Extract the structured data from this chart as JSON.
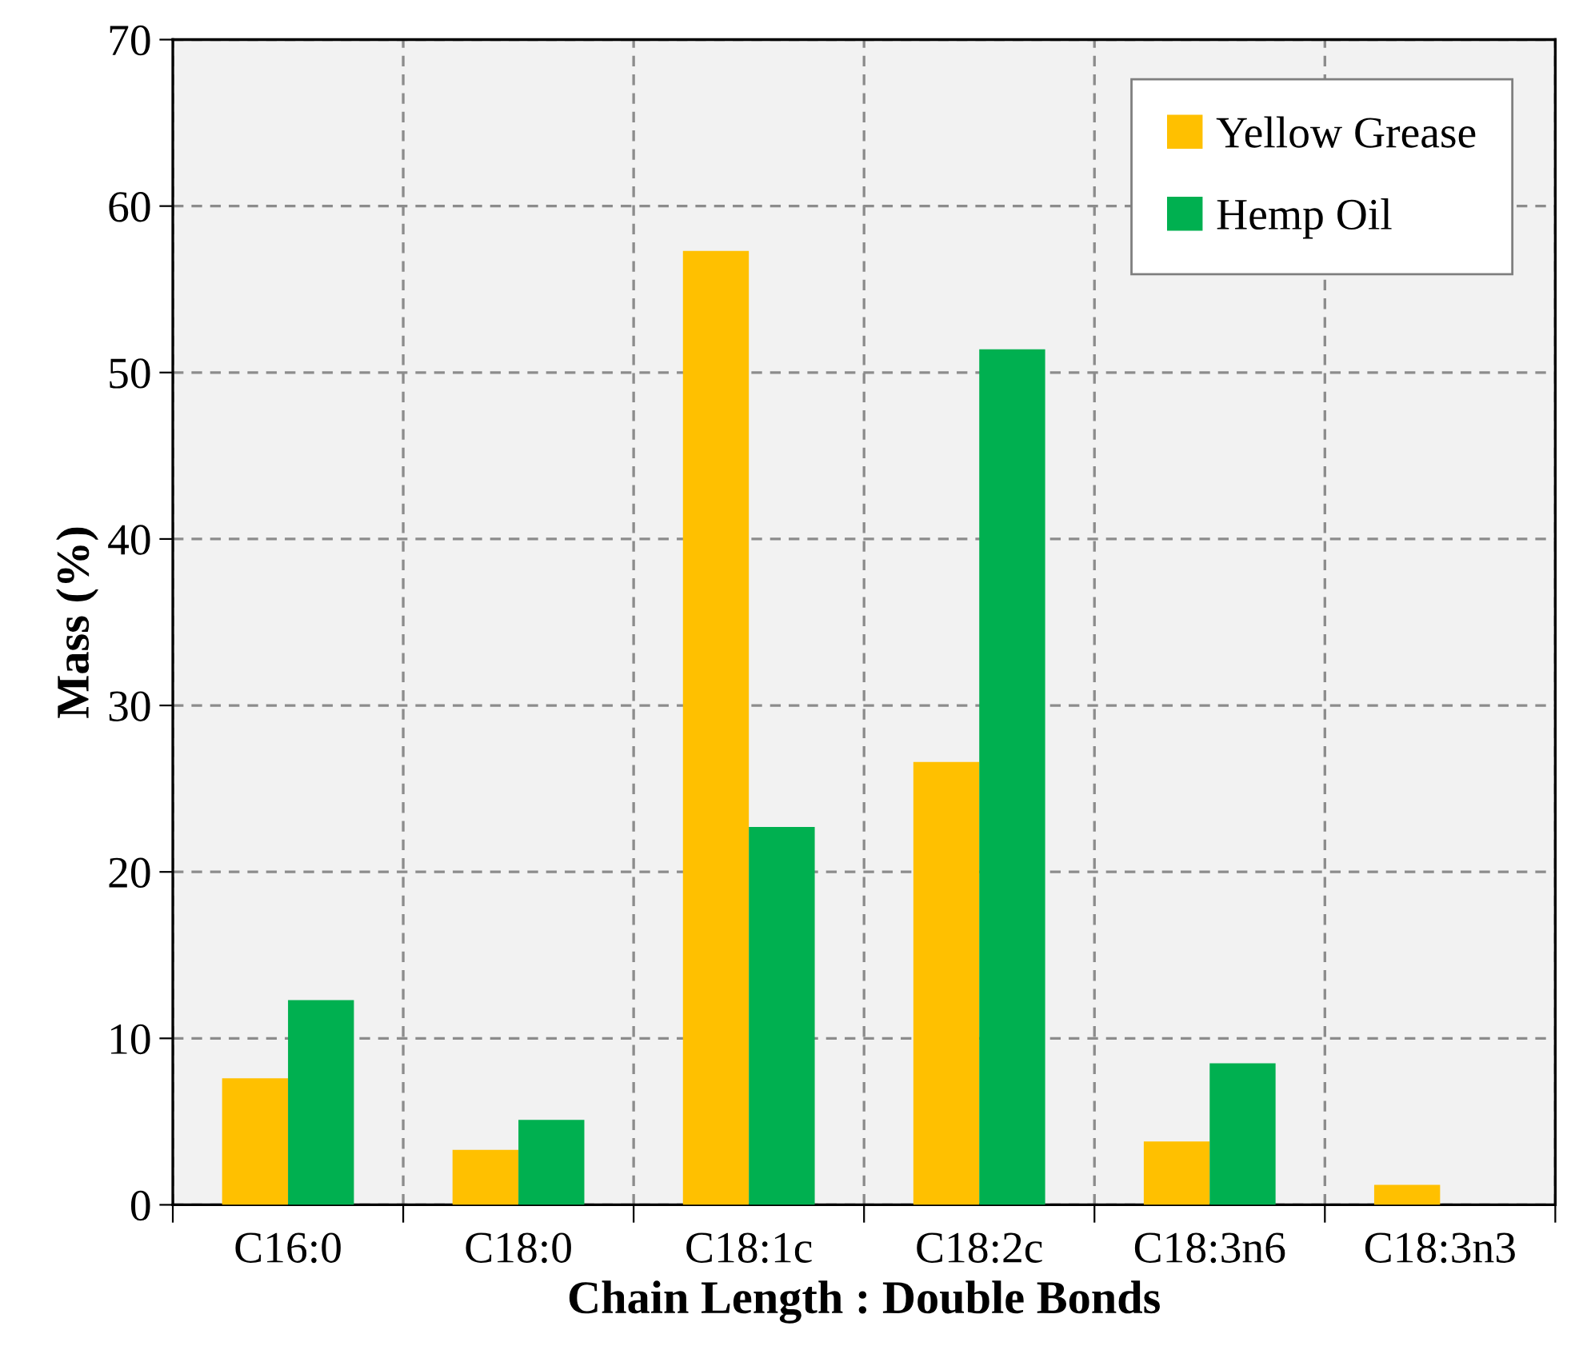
{
  "chart_data": {
    "type": "bar",
    "xlabel": "Chain Length : Double Bonds",
    "ylabel": "Mass (%)",
    "categories": [
      "C16:0",
      "C18:0",
      "C18:1c",
      "C18:2c",
      "C18:3n6",
      "C18:3n3"
    ],
    "series": [
      {
        "name": "Yellow Grease",
        "color": "#ffc000",
        "values": [
          7.6,
          3.3,
          57.3,
          26.6,
          3.8,
          1.2
        ]
      },
      {
        "name": "Hemp Oil",
        "color": "#00b050",
        "values": [
          12.3,
          5.1,
          22.7,
          51.4,
          8.5,
          null
        ]
      }
    ],
    "ylim": [
      0,
      70
    ],
    "yticks": [
      0,
      10,
      20,
      30,
      40,
      50,
      60,
      70
    ],
    "grid": true,
    "legend": "top right"
  }
}
